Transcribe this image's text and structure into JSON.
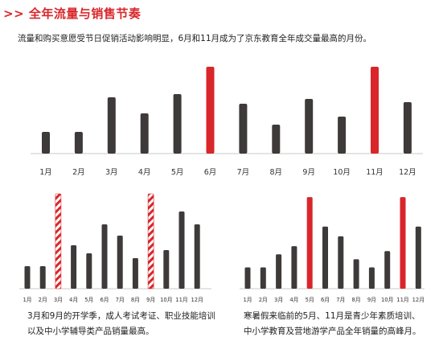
{
  "heading": ">> 全年流量与销售节奏",
  "lead": "流量和购买意愿受节日促销活动影响明显，6月和11月成为了京东教育全年成交量最高的月份。",
  "colors": {
    "accent": "#d9262a",
    "bar": "#3e3a39",
    "axis": "#c8c8c8",
    "stripe_a": "#d9262a",
    "stripe_b": "#ffffff"
  },
  "chart_data": [
    {
      "type": "bar",
      "categories": [
        "1月",
        "2月",
        "3月",
        "4月",
        "5月",
        "6月",
        "7月",
        "8月",
        "9月",
        "10月",
        "11月",
        "12月"
      ],
      "values": [
        27,
        27,
        70,
        50,
        74,
        108,
        62,
        36,
        68,
        46,
        108,
        64
      ],
      "highlight": [
        "6月",
        "11月"
      ],
      "highlight_style": "solid-red",
      "ylim": [
        0,
        110
      ],
      "title": "",
      "xlabel": "",
      "ylabel": ""
    },
    {
      "type": "bar",
      "categories": [
        "1月",
        "2月",
        "3月",
        "4月",
        "5月",
        "6月",
        "7月",
        "8月",
        "9月",
        "10月",
        "11月",
        "12月"
      ],
      "values": [
        28,
        28,
        118,
        54,
        44,
        80,
        66,
        38,
        118,
        48,
        96,
        80
      ],
      "highlight": [
        "3月",
        "9月"
      ],
      "highlight_style": "striped-red",
      "ylim": [
        0,
        120
      ],
      "title": "",
      "xlabel": "",
      "ylabel": ""
    },
    {
      "type": "bar",
      "categories": [
        "1月",
        "2月",
        "3月",
        "4月",
        "5月",
        "6月",
        "7月",
        "8月",
        "9月",
        "10月",
        "11月",
        "12月"
      ],
      "values": [
        26,
        26,
        42,
        52,
        112,
        76,
        64,
        36,
        26,
        46,
        112,
        76
      ],
      "highlight": [
        "5月",
        "11月"
      ],
      "highlight_style": "solid-red",
      "ylim": [
        0,
        115
      ],
      "title": "",
      "xlabel": "",
      "ylabel": ""
    }
  ],
  "captions": {
    "left": [
      "3月和9月的开学季，成人考试考证、职业技能培训",
      "以及中小学辅导类产品销量最高。"
    ],
    "right": [
      "寒暑假来临前的5月、11月是青少年素质培训、",
      "中小学教育及营地游学产品全年销量的高峰月。"
    ]
  }
}
